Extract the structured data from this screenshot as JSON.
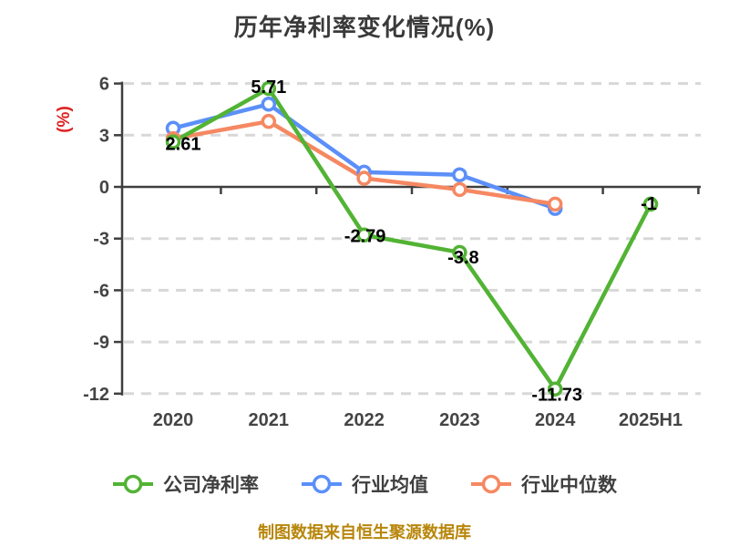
{
  "title": "历年净利率变化情况(%)",
  "footer": "制图数据来自恒生聚源数据库",
  "colors": {
    "company": "#52b334",
    "industry_avg": "#5b8ff9",
    "industry_median": "#f58862",
    "grid": "#d8d8d8",
    "axis": "#3f3f3f",
    "tick_label": "#444444",
    "title": "#3a3a3a",
    "data_label": "#000000",
    "y_axis_label": "#dd2222",
    "footer": "#b8860b",
    "marker_fill": "#ffffff"
  },
  "chart_data": {
    "type": "line",
    "title": "历年净利率变化情况(%)",
    "xlabel": "",
    "ylabel": "(%)",
    "categories": [
      "2020",
      "2021",
      "2022",
      "2023",
      "2024",
      "2025H1"
    ],
    "yticks": [
      6,
      3,
      0,
      -3,
      -6,
      -9,
      -12
    ],
    "ylim": [
      -12,
      6
    ],
    "grid": "horizontal-dashed",
    "legend_position": "bottom",
    "series": [
      {
        "name": "公司净利率",
        "color_key": "company",
        "values": [
          2.61,
          5.71,
          -2.79,
          -3.8,
          -11.73,
          -1
        ],
        "point_labels": [
          "2.61",
          "5.71",
          "-2.79",
          "-3.8",
          "-11.73",
          "-1"
        ]
      },
      {
        "name": "行业均值",
        "color_key": "industry_avg",
        "values": [
          3.4,
          4.8,
          0.85,
          0.7,
          -1.25,
          null
        ],
        "point_labels": []
      },
      {
        "name": "行业中位数",
        "color_key": "industry_median",
        "values": [
          2.8,
          3.8,
          0.5,
          -0.15,
          -1.0,
          null
        ],
        "point_labels": []
      }
    ]
  }
}
